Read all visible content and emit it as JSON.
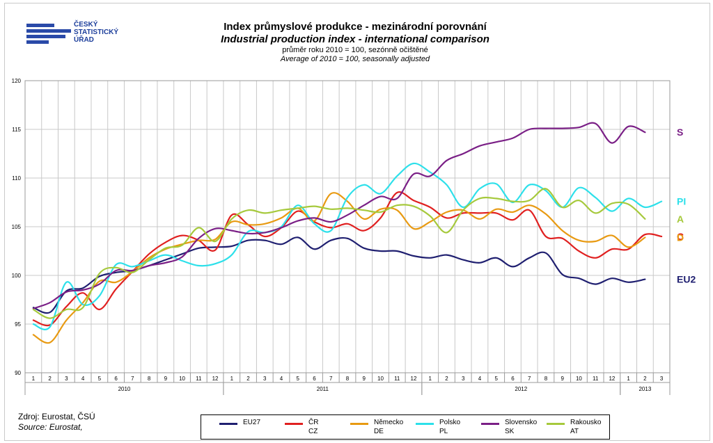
{
  "logo": {
    "line1": "ČESKÝ",
    "line2": "STATISTICKÝ",
    "line3": "ÚŘAD",
    "color": "#1c3e9b"
  },
  "header": {
    "title_cz": "Index průmyslové produkce - mezinárodní porovnání",
    "title_en": "Industrial production index - international comparison",
    "subtitle_cz": "průměr roku 2010 = 100, sezónně očištěné",
    "subtitle_en": "Average of 2010 = 100, seasonally adjusted"
  },
  "source": {
    "line1": "Zdroj:  Eurostat, ČSÚ",
    "line2": "Source: Eurostat,"
  },
  "chart_data": {
    "type": "line",
    "title": "Index průmyslové produkce - mezinárodní porovnání",
    "ylim": [
      90,
      120
    ],
    "yticks": [
      90,
      95,
      100,
      105,
      110,
      115,
      120
    ],
    "grid": true,
    "legend_position": "bottom",
    "months": [
      "1",
      "2",
      "3",
      "4",
      "5",
      "6",
      "7",
      "8",
      "9",
      "10",
      "11",
      "12",
      "1",
      "2",
      "3",
      "4",
      "5",
      "6",
      "7",
      "8",
      "9",
      "10",
      "11",
      "12",
      "1",
      "2",
      "3",
      "4",
      "5",
      "6",
      "7",
      "8",
      "9",
      "10",
      "11",
      "12",
      "1",
      "2",
      "3"
    ],
    "years": [
      {
        "label": "2010",
        "start": 0,
        "end": 11
      },
      {
        "label": "2011",
        "start": 12,
        "end": 23
      },
      {
        "label": "2012",
        "start": 24,
        "end": 35
      },
      {
        "label": "2013",
        "start": 36,
        "end": 38
      }
    ],
    "series": [
      {
        "name": "EU27",
        "name2": "",
        "color": "#1f1f70",
        "end_label": "EU2",
        "values": [
          96.7,
          96.2,
          98.4,
          98.7,
          99.9,
          100.3,
          100.5,
          101.0,
          101.6,
          102.2,
          102.8,
          102.9,
          103.0,
          103.6,
          103.6,
          103.2,
          103.9,
          102.7,
          103.6,
          103.8,
          102.8,
          102.5,
          102.5,
          102.0,
          101.8,
          102.1,
          101.6,
          101.3,
          101.8,
          100.9,
          101.8,
          102.3,
          100.1,
          99.7,
          99.1,
          99.7,
          99.3,
          99.6,
          null
        ]
      },
      {
        "name": "ČR",
        "name2": "CZ",
        "color": "#e02020",
        "end_label": "C",
        "values": [
          95.4,
          94.9,
          96.8,
          98.2,
          96.5,
          98.6,
          100.4,
          102.2,
          103.4,
          104.1,
          103.6,
          102.6,
          106.2,
          105.2,
          104.0,
          104.9,
          106.6,
          105.5,
          104.9,
          105.3,
          104.6,
          105.9,
          108.5,
          107.7,
          107.0,
          105.9,
          106.4,
          106.4,
          106.4,
          105.7,
          106.7,
          104.0,
          103.8,
          102.5,
          101.8,
          102.7,
          102.7,
          104.2,
          104.0
        ]
      },
      {
        "name": "Německo",
        "name2": "DE",
        "color": "#e89a12",
        "end_label": "D",
        "values": [
          93.9,
          93.1,
          95.4,
          97.2,
          99.4,
          99.3,
          100.4,
          101.8,
          102.7,
          103.2,
          103.6,
          103.7,
          105.5,
          105.2,
          105.3,
          105.9,
          106.9,
          105.6,
          108.4,
          107.6,
          105.8,
          106.8,
          106.7,
          104.8,
          105.5,
          106.5,
          106.7,
          105.8,
          106.8,
          106.5,
          107.2,
          106.3,
          104.6,
          103.6,
          103.5,
          104.1,
          102.9,
          103.9,
          null
        ]
      },
      {
        "name": "Polsko",
        "name2": "PL",
        "color": "#2de0ea",
        "end_label": "PI",
        "values": [
          95.0,
          94.7,
          99.3,
          97.0,
          97.9,
          101.1,
          100.9,
          101.5,
          102.1,
          101.5,
          101.0,
          101.2,
          102.1,
          104.5,
          104.4,
          105.0,
          107.2,
          105.3,
          104.6,
          108.0,
          109.3,
          108.4,
          110.2,
          111.5,
          110.6,
          109.3,
          107.0,
          108.9,
          109.4,
          107.5,
          109.3,
          108.7,
          107.0,
          109.0,
          108.0,
          106.6,
          107.9,
          107.0,
          107.6
        ]
      },
      {
        "name": "Slovensko",
        "name2": "SK",
        "color": "#7a1f86",
        "end_label": "S",
        "values": [
          96.6,
          97.2,
          98.3,
          98.5,
          99.1,
          100.5,
          100.5,
          101.0,
          101.3,
          101.9,
          103.8,
          104.8,
          104.6,
          104.3,
          104.4,
          104.9,
          105.6,
          105.9,
          105.5,
          106.2,
          107.2,
          108.1,
          107.9,
          110.4,
          110.2,
          111.8,
          112.5,
          113.3,
          113.7,
          114.1,
          115.0,
          115.1,
          115.1,
          115.2,
          115.6,
          113.6,
          115.3,
          114.7,
          null
        ]
      },
      {
        "name": "Rakousko",
        "name2": "AT",
        "color": "#a6c93c",
        "end_label": "A",
        "values": [
          96.5,
          95.6,
          96.5,
          96.7,
          100.2,
          100.8,
          100.3,
          101.6,
          102.8,
          103.1,
          104.9,
          103.5,
          105.8,
          106.7,
          106.4,
          106.7,
          106.9,
          107.1,
          106.8,
          106.9,
          106.7,
          106.5,
          107.2,
          107.1,
          106.1,
          104.4,
          106.7,
          107.9,
          107.9,
          107.6,
          107.7,
          108.9,
          107.0,
          107.7,
          106.4,
          107.4,
          107.3,
          105.8,
          null
        ]
      }
    ]
  }
}
